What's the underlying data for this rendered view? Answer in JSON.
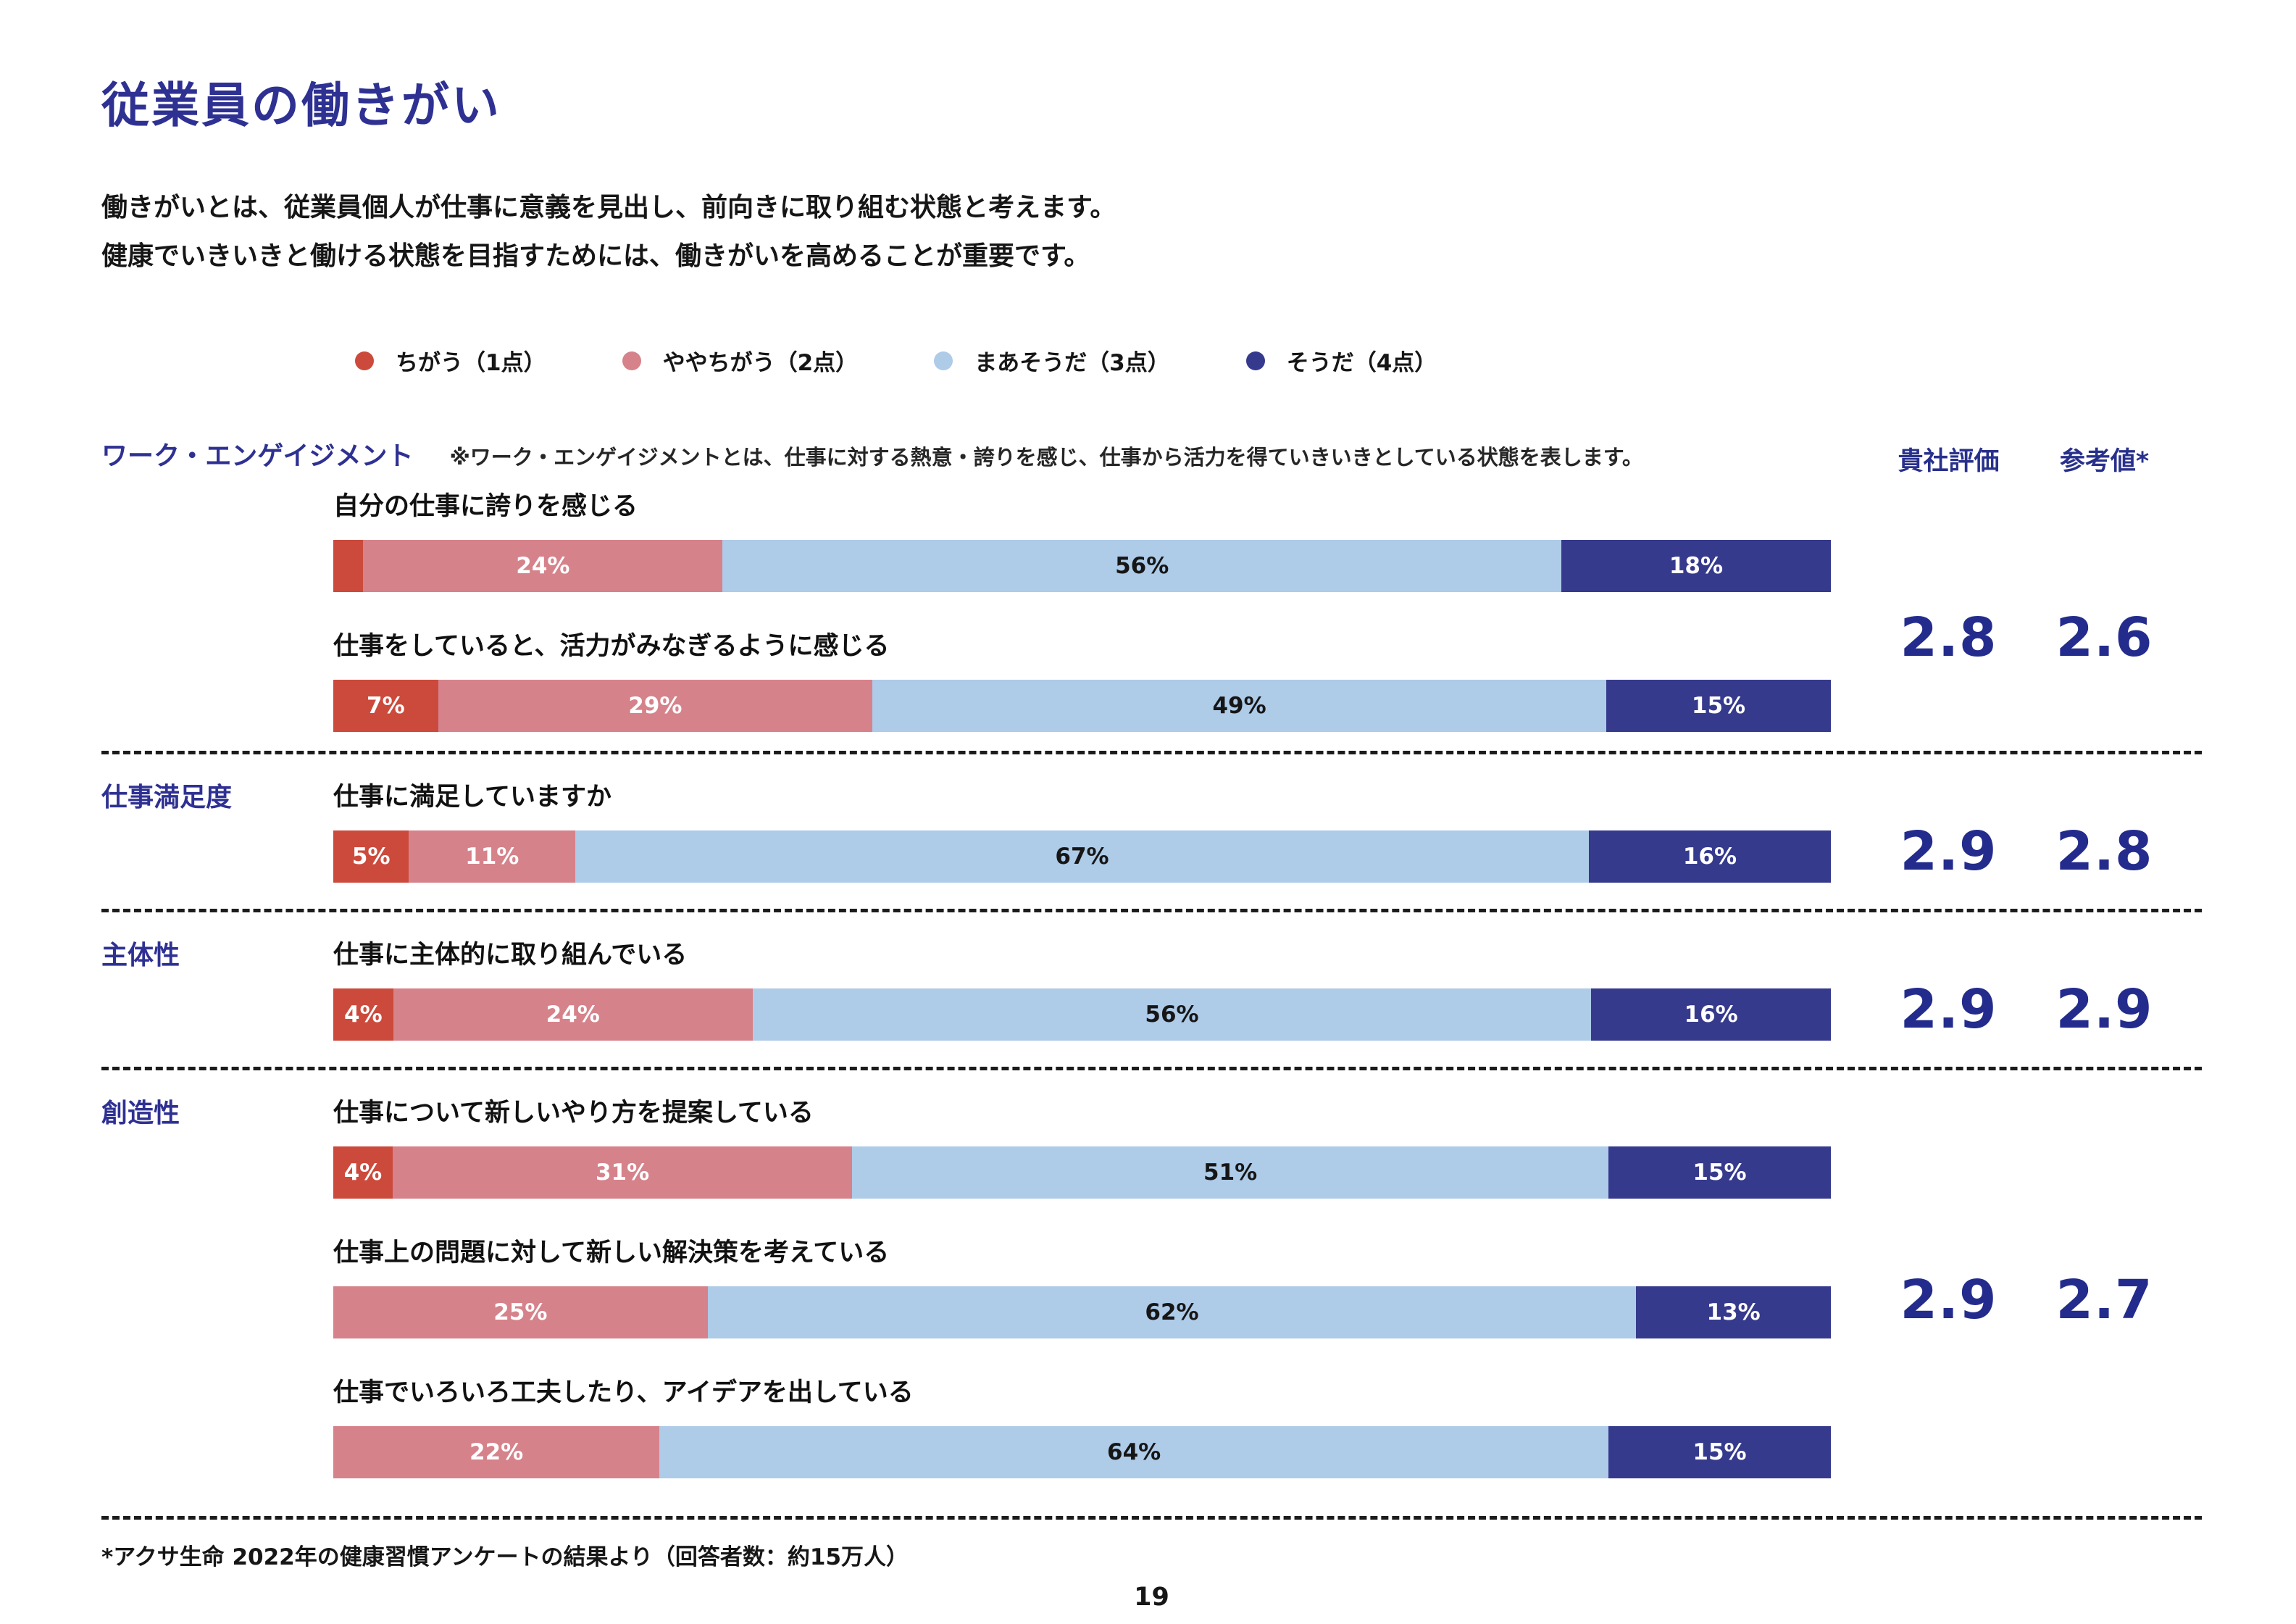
{
  "page": {
    "title": "従業員の働きがい",
    "description_lines": [
      "働きがいとは、従業員個人が仕事に意義を見出し、前向きに取り組む状態と考えます。",
      "健康でいきいきと働ける状態を目指すためには、働きがいを高めることが重要です。"
    ],
    "footnote": "*アクサ生命 2022年の健康習慣アンケートの結果より（回答者数：約15万人）",
    "page_number": "19"
  },
  "palette": {
    "a1": "#CC4A3C",
    "a2": "#D6828B",
    "a3": "#AECBE8",
    "a4": "#363A8D",
    "navy_text": "#28308C"
  },
  "score_headers": {
    "company": "貴社評価",
    "reference": "参考値*"
  },
  "chart_data": {
    "type": "bar",
    "stacked": true,
    "orientation": "horizontal",
    "unit": "%",
    "categories": [
      "ちがう（1点）",
      "ややちがう（2点）",
      "まあそうだ（3点）",
      "そうだ（4点）"
    ],
    "sections": [
      {
        "label": "ワーク・エンゲイジメント",
        "note": "※ワーク・エンゲイジメントとは、仕事に対する熱意・誇りを感じ、仕事から活力を得ていきいきとしている状態を表します。",
        "company_score": "2.8",
        "reference_score": "2.6",
        "items": [
          {
            "question": "自分の仕事に誇りを感じる",
            "segments": [
              {
                "answer": 1,
                "value": 2,
                "label": ""
              },
              {
                "answer": 2,
                "value": 24,
                "label": "24%"
              },
              {
                "answer": 3,
                "value": 56,
                "label": "56%"
              },
              {
                "answer": 4,
                "value": 18,
                "label": "18%"
              }
            ]
          },
          {
            "question": "仕事をしていると、活力がみなぎるように感じる",
            "segments": [
              {
                "answer": 1,
                "value": 7,
                "label": "7%"
              },
              {
                "answer": 2,
                "value": 29,
                "label": "29%"
              },
              {
                "answer": 3,
                "value": 49,
                "label": "49%"
              },
              {
                "answer": 4,
                "value": 15,
                "label": "15%"
              }
            ]
          }
        ]
      },
      {
        "label": "仕事満足度",
        "company_score": "2.9",
        "reference_score": "2.8",
        "items": [
          {
            "question": "仕事に満足していますか",
            "segments": [
              {
                "answer": 1,
                "value": 5,
                "label": "5%"
              },
              {
                "answer": 2,
                "value": 11,
                "label": "11%"
              },
              {
                "answer": 3,
                "value": 67,
                "label": "67%"
              },
              {
                "answer": 4,
                "value": 16,
                "label": "16%"
              }
            ]
          }
        ]
      },
      {
        "label": "主体性",
        "company_score": "2.9",
        "reference_score": "2.9",
        "items": [
          {
            "question": "仕事に主体的に取り組んでいる",
            "segments": [
              {
                "answer": 1,
                "value": 4,
                "label": "4%"
              },
              {
                "answer": 2,
                "value": 24,
                "label": "24%"
              },
              {
                "answer": 3,
                "value": 56,
                "label": "56%"
              },
              {
                "answer": 4,
                "value": 16,
                "label": "16%"
              }
            ]
          }
        ]
      },
      {
        "label": "創造性",
        "company_score": "2.9",
        "reference_score": "2.7",
        "items": [
          {
            "question": "仕事について新しいやり方を提案している",
            "segments": [
              {
                "answer": 1,
                "value": 4,
                "label": "4%"
              },
              {
                "answer": 2,
                "value": 31,
                "label": "31%"
              },
              {
                "answer": 3,
                "value": 51,
                "label": "51%"
              },
              {
                "answer": 4,
                "value": 15,
                "label": "15%"
              }
            ]
          },
          {
            "question": "仕事上の問題に対して新しい解決策を考えている",
            "segments": [
              {
                "answer": 2,
                "value": 25,
                "label": "25%"
              },
              {
                "answer": 3,
                "value": 62,
                "label": "62%"
              },
              {
                "answer": 4,
                "value": 13,
                "label": "13%"
              }
            ]
          },
          {
            "question": "仕事でいろいろ工夫したり、アイデアを出している",
            "segments": [
              {
                "answer": 2,
                "value": 22,
                "label": "22%"
              },
              {
                "answer": 3,
                "value": 64,
                "label": "64%"
              },
              {
                "answer": 4,
                "value": 15,
                "label": "15%"
              }
            ]
          }
        ]
      }
    ]
  }
}
